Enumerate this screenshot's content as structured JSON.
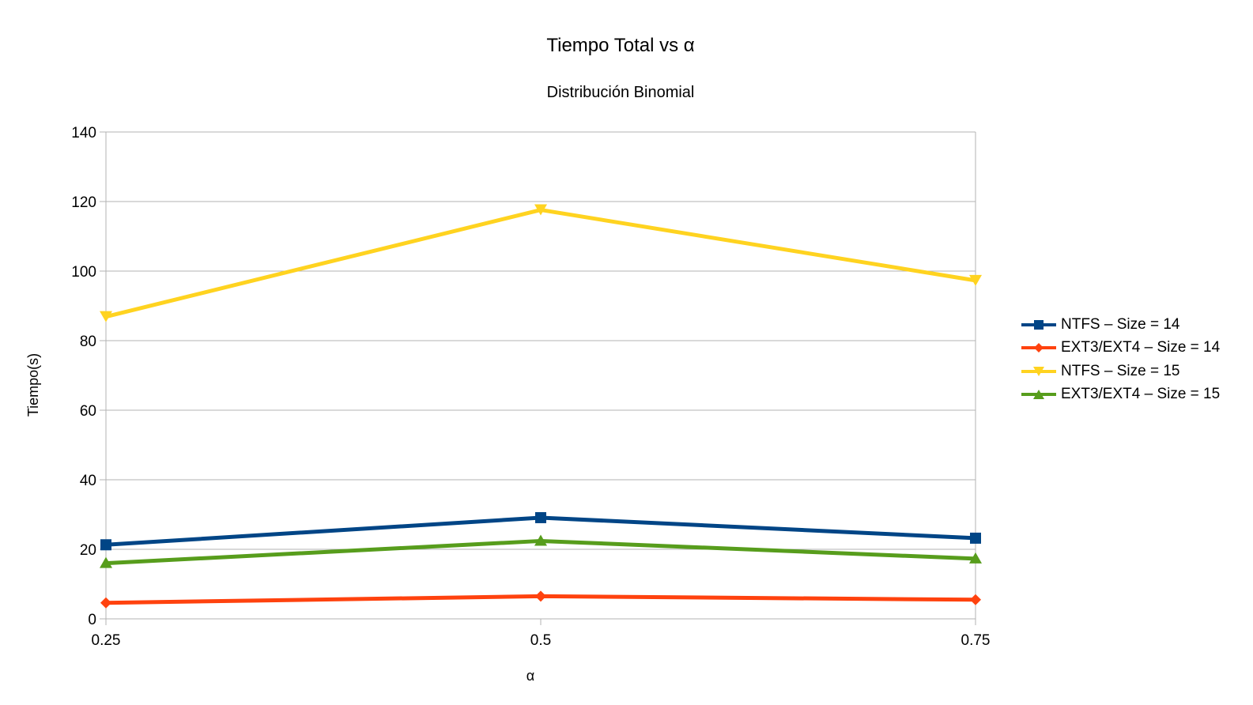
{
  "chart_data": {
    "type": "line",
    "title": "Tiempo Total vs α",
    "subtitle": "Distribución Binomial",
    "xlabel": "α",
    "ylabel": "Tiempo(s)",
    "x": [
      "0.25",
      "0.5",
      "0.75"
    ],
    "ylim": [
      0,
      140
    ],
    "yticks": [
      0,
      20,
      40,
      60,
      80,
      100,
      120,
      140
    ],
    "grid": true,
    "legend_position": "right",
    "series": [
      {
        "name": "NTFS – Size = 14",
        "values": [
          21.3,
          29.1,
          23.2
        ],
        "color": "#004586",
        "marker": "square"
      },
      {
        "name": "EXT3/EXT4 – Size = 14",
        "values": [
          4.6,
          6.5,
          5.5
        ],
        "color": "#ff420e",
        "marker": "diamond"
      },
      {
        "name": "NTFS – Size = 15",
        "values": [
          86.9,
          117.6,
          97.3
        ],
        "color": "#ffd320",
        "marker": "triangle-down"
      },
      {
        "name": "EXT3/EXT4 – Size = 15",
        "values": [
          16.0,
          22.4,
          17.3
        ],
        "color": "#579d1c",
        "marker": "triangle-up"
      }
    ]
  }
}
